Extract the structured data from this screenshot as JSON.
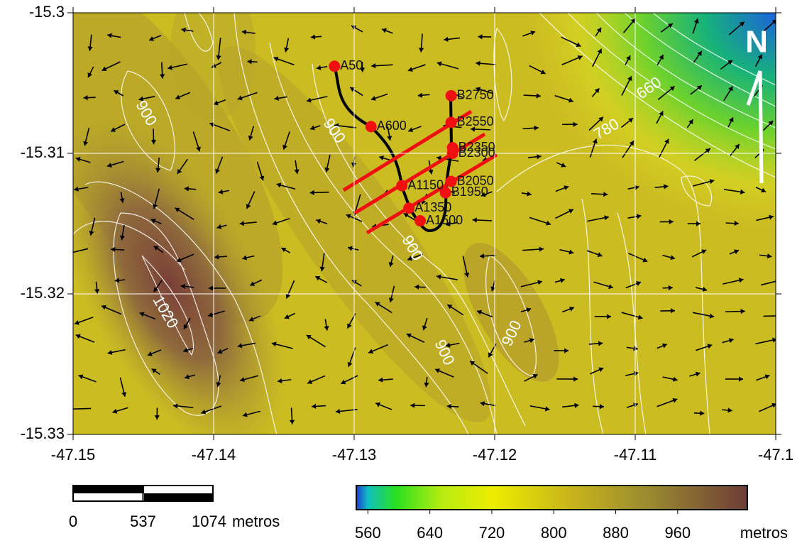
{
  "map": {
    "xlim": [
      -47.15,
      -47.1
    ],
    "ylim": [
      -15.33,
      -15.3
    ],
    "xticks": [
      -47.15,
      -47.14,
      -47.13,
      -47.12,
      -47.11,
      -47.1
    ],
    "yticks": [
      -15.33,
      -15.32,
      -15.31,
      -15.3
    ],
    "points": [
      {
        "label": "A50",
        "lon": -47.1314,
        "lat": -15.3038
      },
      {
        "label": "A600",
        "lon": -47.1288,
        "lat": -15.3081
      },
      {
        "label": "A1150",
        "lon": -47.1266,
        "lat": -15.3123
      },
      {
        "label": "A1350",
        "lon": -47.1261,
        "lat": -15.3139
      },
      {
        "label": "A1500",
        "lon": -47.1253,
        "lat": -15.3148
      },
      {
        "label": "B2750",
        "lon": -47.1231,
        "lat": -15.3059
      },
      {
        "label": "B2550",
        "lon": -47.1231,
        "lat": -15.3078
      },
      {
        "label": "B2350",
        "lon": -47.123,
        "lat": -15.3096
      },
      {
        "label": "B2300",
        "lon": -47.123,
        "lat": -15.31
      },
      {
        "label": "B2050",
        "lon": -47.1231,
        "lat": -15.312
      },
      {
        "label": "B1950",
        "lon": -47.1235,
        "lat": -15.3128
      }
    ],
    "contour_labels": [
      "900",
      "900",
      "900",
      "900",
      "900",
      "1020",
      "660",
      "780"
    ],
    "north": "N"
  },
  "scale_bar": {
    "ticks": [
      0,
      537,
      1074
    ],
    "unit": "metros"
  },
  "color_bar": {
    "lim": [
      545,
      1050
    ],
    "ticks": [
      560,
      640,
      720,
      800,
      880,
      960
    ],
    "unit": "metros"
  }
}
